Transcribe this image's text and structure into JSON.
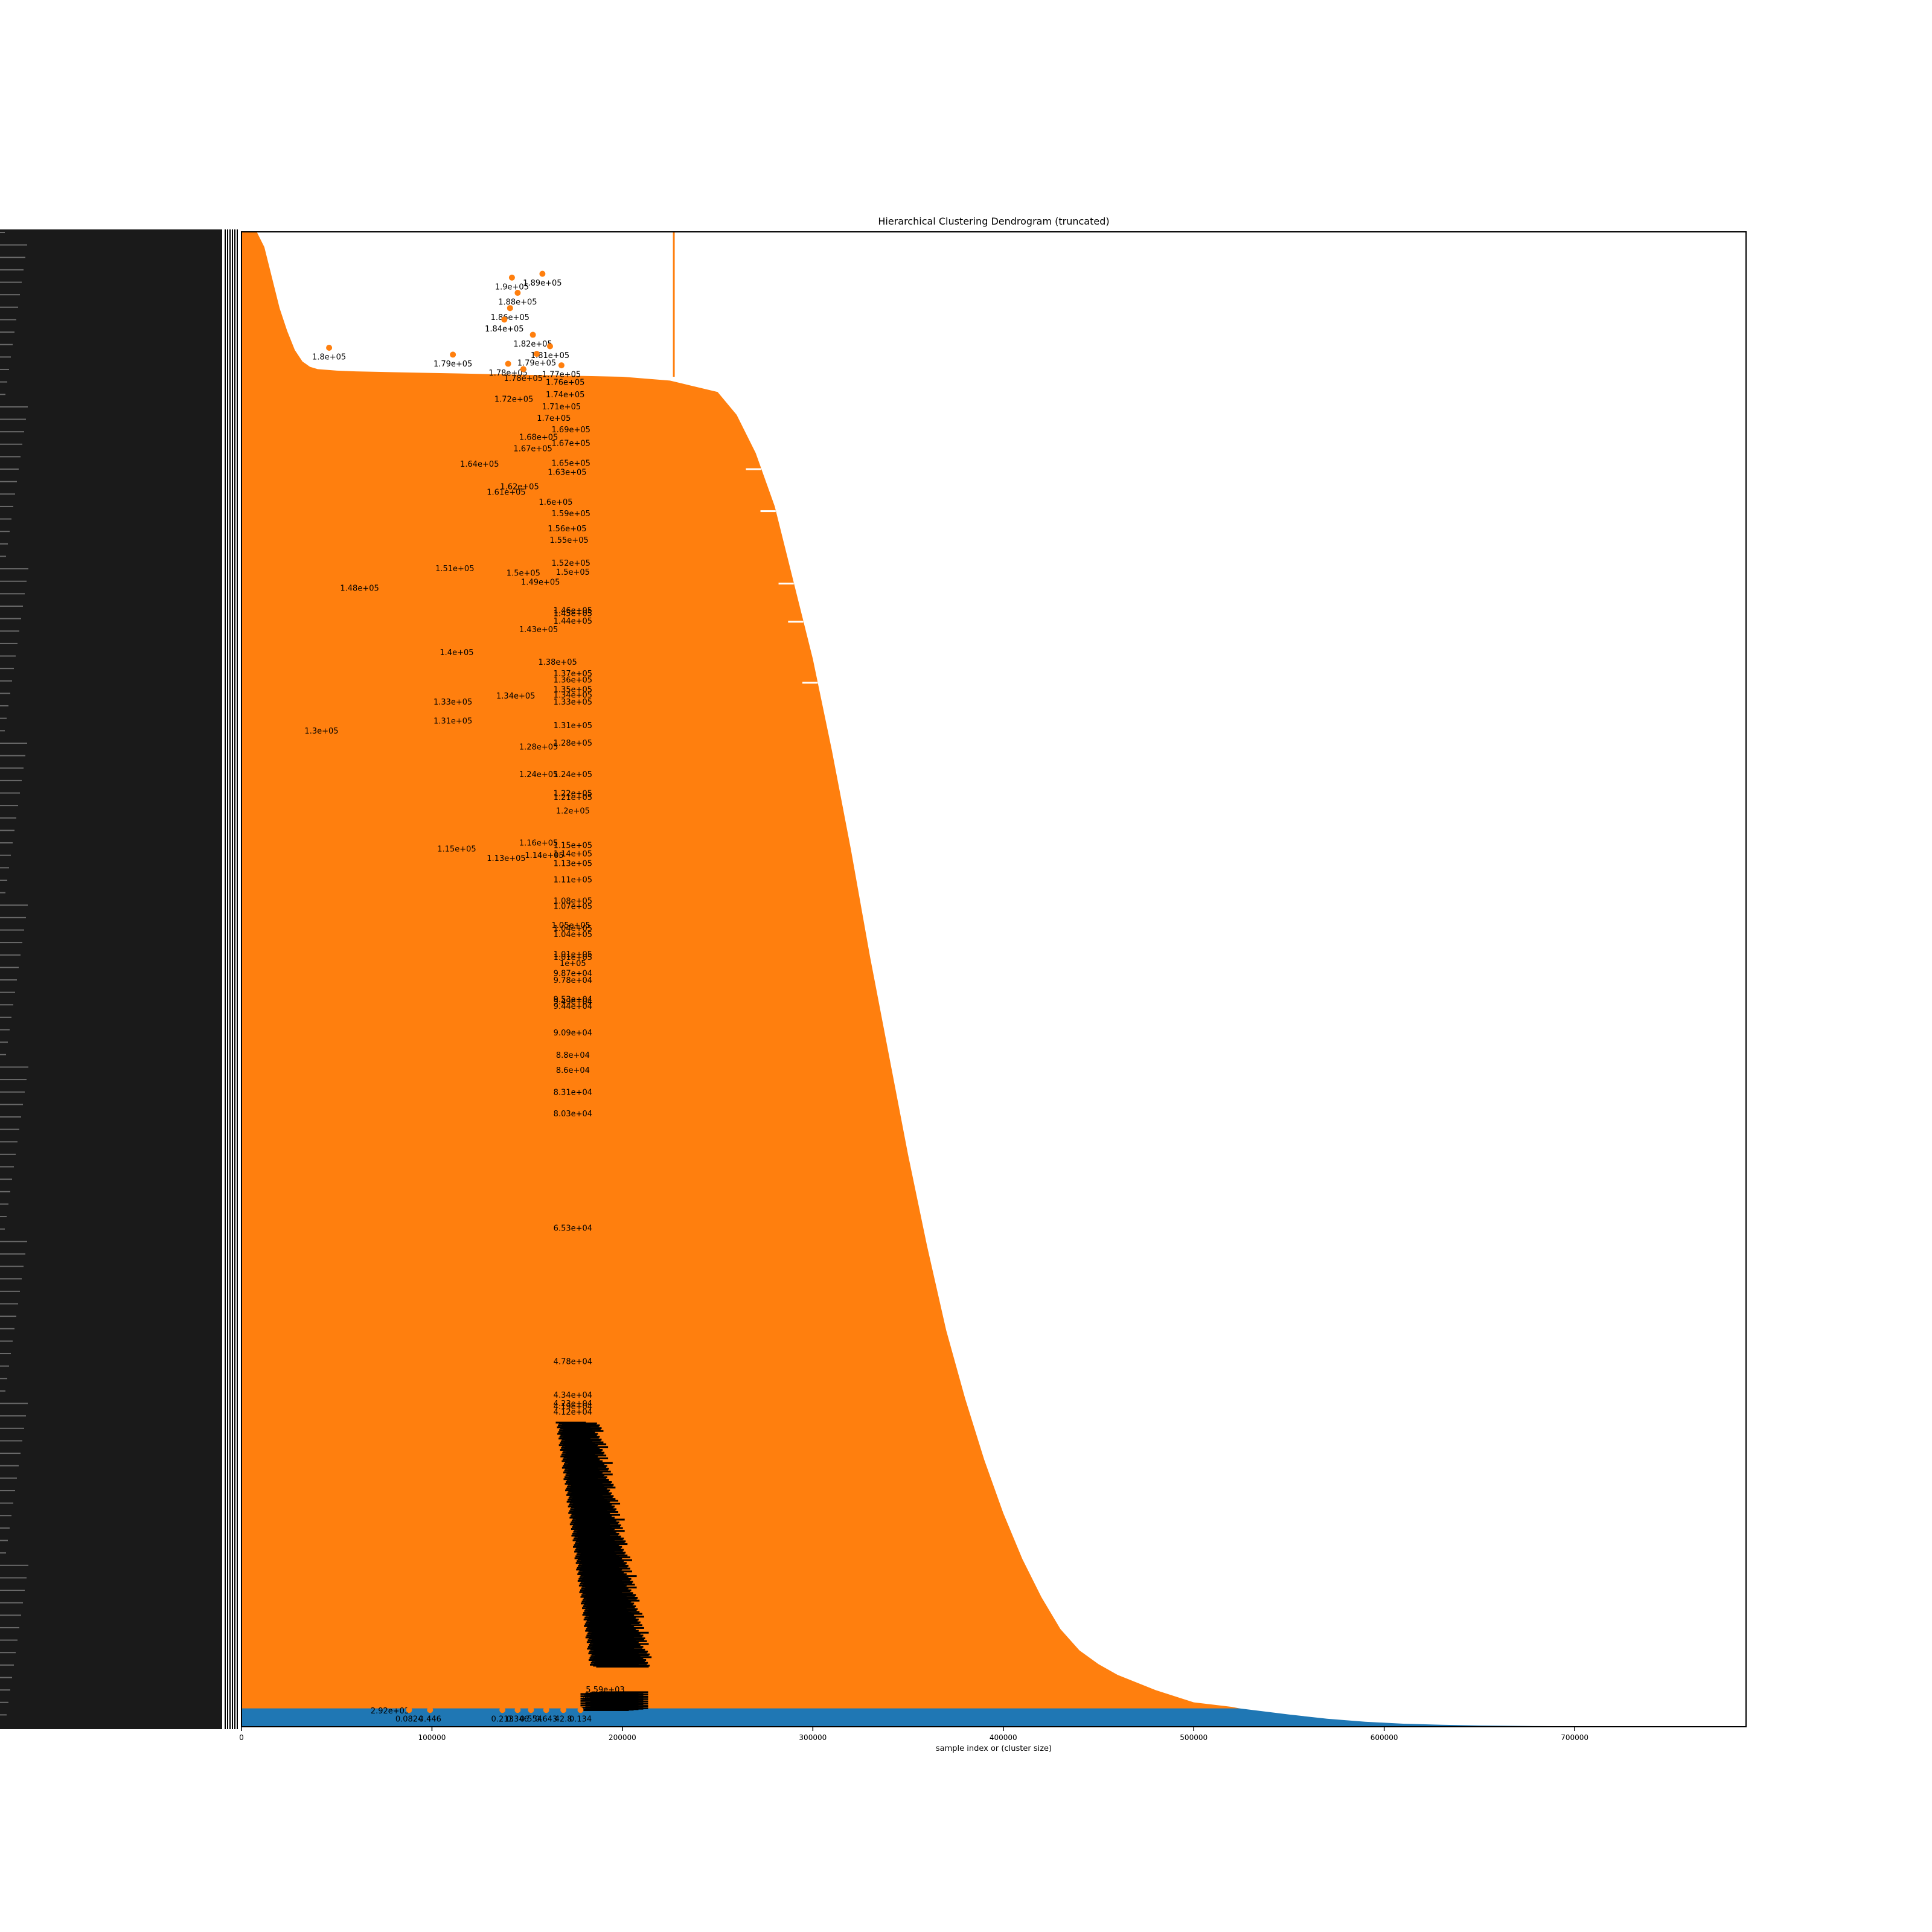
{
  "chart_data": {
    "type": "dendrogram",
    "title": "Hierarchical Clustering Dendrogram (truncated)",
    "xlabel": "sample index or (cluster size)",
    "ylabel": "",
    "xlim": [
      0,
      790000
    ],
    "ylim": [
      0,
      196000
    ],
    "grid": false,
    "legend": "none",
    "colors": {
      "upper_clusters": "#ff7f0e",
      "base_cluster": "#1f77b4",
      "labels": "#000000"
    },
    "x_ticks": [
      0,
      100000,
      200000,
      300000,
      400000,
      500000,
      600000,
      700000
    ],
    "x_tick_labels": [
      "0",
      "100000",
      "200000",
      "300000",
      "400000",
      "500000",
      "600000",
      "700000"
    ],
    "orange_region_profile": {
      "x": [
        0,
        100000,
        200000,
        225000,
        250000,
        260000,
        270000,
        280000,
        290000,
        300000,
        310000,
        320000,
        330000,
        340000,
        350000,
        360000,
        370000,
        380000,
        390000,
        400000,
        410000,
        420000,
        430000,
        440000,
        450000,
        460000,
        480000,
        500000,
        520000,
        524000
      ],
      "y": [
        178000,
        177500,
        177000,
        176500,
        175000,
        172000,
        167000,
        160000,
        150000,
        140000,
        128000,
        115000,
        101000,
        88000,
        75000,
        63000,
        52000,
        43000,
        35000,
        28000,
        22000,
        17000,
        12800,
        10000,
        8200,
        6800,
        4800,
        3200,
        2600,
        2400
      ]
    },
    "orange_top_edge_x_at_max": 8000,
    "orange_left_hump": {
      "x": [
        8000,
        12000,
        16000,
        20000,
        24000,
        28000,
        32000,
        36000,
        40000,
        50000,
        60000,
        80000,
        100000
      ],
      "y": [
        196000,
        194000,
        190000,
        186000,
        183000,
        180500,
        179000,
        178300,
        178000,
        177800,
        177700,
        177600,
        177500
      ]
    },
    "orange_spike": {
      "x": 227000,
      "y_top": 196000,
      "y_bottom": 177000
    },
    "blue_region_profile": {
      "x": [
        0,
        524000,
        550000,
        570000,
        590000,
        610000,
        630000,
        650000,
        680000,
        720000,
        755000
      ],
      "y": [
        2400,
        2400,
        1600,
        1050,
        650,
        400,
        260,
        160,
        90,
        40,
        10
      ]
    },
    "merge_points": [
      {
        "x": 142000,
        "y": 190000,
        "label": "1.9e+05"
      },
      {
        "x": 145000,
        "y": 188000,
        "label": "1.88e+05"
      },
      {
        "x": 158000,
        "y": 190500,
        "label": "1.89e+05"
      },
      {
        "x": 141000,
        "y": 186000,
        "label": "1.86e+05"
      },
      {
        "x": 138000,
        "y": 184500,
        "label": "1.84e+05"
      },
      {
        "x": 153000,
        "y": 182500,
        "label": "1.82e+05"
      },
      {
        "x": 46000,
        "y": 180800,
        "label": "1.8e+05"
      },
      {
        "x": 162000,
        "y": 181000,
        "label": "1.81e+05"
      },
      {
        "x": 111000,
        "y": 179900,
        "label": "1.79e+05"
      },
      {
        "x": 155000,
        "y": 180000,
        "label": "1.79e+05"
      },
      {
        "x": 140000,
        "y": 178700,
        "label": "1.78e+05"
      },
      {
        "x": 148000,
        "y": 178000,
        "label": "1.78e+05"
      },
      {
        "x": 168000,
        "y": 178500,
        "label": "1.77e+05"
      },
      {
        "x": 88000,
        "y": 2200,
        "label": "0.0824"
      },
      {
        "x": 99000,
        "y": 2200,
        "label": "0.446"
      },
      {
        "x": 137000,
        "y": 2200,
        "label": "0.213"
      },
      {
        "x": 145000,
        "y": 2200,
        "label": "0.346"
      },
      {
        "x": 152000,
        "y": 2200,
        "label": "0.554"
      },
      {
        "x": 160000,
        "y": 2200,
        "label": "0.643"
      },
      {
        "x": 169000,
        "y": 2200,
        "label": "42.8"
      },
      {
        "x": 178000,
        "y": 2200,
        "label": "0.134"
      }
    ],
    "distance_labels": [
      {
        "x": 143000,
        "y": 174000,
        "label": "1.72e+05"
      },
      {
        "x": 170000,
        "y": 174600,
        "label": "1.74e+05"
      },
      {
        "x": 170000,
        "y": 176200,
        "label": "1.76e+05"
      },
      {
        "x": 168000,
        "y": 173000,
        "label": "1.71e+05"
      },
      {
        "x": 164000,
        "y": 171500,
        "label": "1.7e+05"
      },
      {
        "x": 173000,
        "y": 170000,
        "label": "1.69e+05"
      },
      {
        "x": 156000,
        "y": 169000,
        "label": "1.68e+05"
      },
      {
        "x": 173000,
        "y": 168200,
        "label": "1.67e+05"
      },
      {
        "x": 153000,
        "y": 167500,
        "label": "1.67e+05"
      },
      {
        "x": 125000,
        "y": 165500,
        "label": "1.64e+05"
      },
      {
        "x": 173000,
        "y": 165600,
        "label": "1.65e+05"
      },
      {
        "x": 171000,
        "y": 164400,
        "label": "1.63e+05"
      },
      {
        "x": 146000,
        "y": 162500,
        "label": "1.62e+05"
      },
      {
        "x": 139000,
        "y": 161800,
        "label": "1.61e+05"
      },
      {
        "x": 165000,
        "y": 160500,
        "label": "1.6e+05"
      },
      {
        "x": 173000,
        "y": 159000,
        "label": "1.59e+05"
      },
      {
        "x": 171000,
        "y": 157000,
        "label": "1.56e+05"
      },
      {
        "x": 172000,
        "y": 155500,
        "label": "1.55e+05"
      },
      {
        "x": 173000,
        "y": 152500,
        "label": "1.52e+05"
      },
      {
        "x": 112000,
        "y": 151800,
        "label": "1.51e+05"
      },
      {
        "x": 148000,
        "y": 151200,
        "label": "1.5e+05"
      },
      {
        "x": 174000,
        "y": 151300,
        "label": "1.5e+05"
      },
      {
        "x": 157000,
        "y": 150000,
        "label": "1.49e+05"
      },
      {
        "x": 62000,
        "y": 149200,
        "label": "1.48e+05"
      },
      {
        "x": 174000,
        "y": 146300,
        "label": "1.46e+05"
      },
      {
        "x": 174000,
        "y": 145900,
        "label": "1.45e+05"
      },
      {
        "x": 174000,
        "y": 144900,
        "label": "1.44e+05"
      },
      {
        "x": 156000,
        "y": 143800,
        "label": "1.43e+05"
      },
      {
        "x": 113000,
        "y": 140800,
        "label": "1.4e+05"
      },
      {
        "x": 166000,
        "y": 139500,
        "label": "1.38e+05"
      },
      {
        "x": 174000,
        "y": 138000,
        "label": "1.37e+05"
      },
      {
        "x": 174000,
        "y": 137200,
        "label": "1.36e+05"
      },
      {
        "x": 174000,
        "y": 135900,
        "label": "1.35e+05"
      },
      {
        "x": 144000,
        "y": 135100,
        "label": "1.34e+05"
      },
      {
        "x": 174000,
        "y": 135200,
        "label": "1.34e+05"
      },
      {
        "x": 111000,
        "y": 134300,
        "label": "1.33e+05"
      },
      {
        "x": 174000,
        "y": 134300,
        "label": "1.33e+05"
      },
      {
        "x": 111000,
        "y": 131800,
        "label": "1.31e+05"
      },
      {
        "x": 174000,
        "y": 131200,
        "label": "1.31e+05"
      },
      {
        "x": 42000,
        "y": 130500,
        "label": "1.3e+05"
      },
      {
        "x": 174000,
        "y": 128900,
        "label": "1.28e+05"
      },
      {
        "x": 156000,
        "y": 128400,
        "label": "1.28e+05"
      },
      {
        "x": 156000,
        "y": 124800,
        "label": "1.24e+05"
      },
      {
        "x": 174000,
        "y": 124800,
        "label": "1.24e+05"
      },
      {
        "x": 174000,
        "y": 122300,
        "label": "1.22e+05"
      },
      {
        "x": 174000,
        "y": 121800,
        "label": "1.21e+05"
      },
      {
        "x": 174000,
        "y": 120000,
        "label": "1.2e+05"
      },
      {
        "x": 156000,
        "y": 115800,
        "label": "1.16e+05"
      },
      {
        "x": 174000,
        "y": 115500,
        "label": "1.15e+05"
      },
      {
        "x": 113000,
        "y": 115000,
        "label": "1.15e+05"
      },
      {
        "x": 159000,
        "y": 114200,
        "label": "1.14e+05"
      },
      {
        "x": 174000,
        "y": 114400,
        "label": "1.14e+05"
      },
      {
        "x": 139000,
        "y": 113800,
        "label": "1.13e+05"
      },
      {
        "x": 174000,
        "y": 113100,
        "label": "1.13e+05"
      },
      {
        "x": 174000,
        "y": 111000,
        "label": "1.11e+05"
      },
      {
        "x": 174000,
        "y": 108200,
        "label": "1.08e+05"
      },
      {
        "x": 174000,
        "y": 107500,
        "label": "1.07e+05"
      },
      {
        "x": 173000,
        "y": 105000,
        "label": "1.05e+05"
      },
      {
        "x": 174000,
        "y": 104600,
        "label": "1.04e+05"
      },
      {
        "x": 174000,
        "y": 103800,
        "label": "1.04e+05"
      },
      {
        "x": 174000,
        "y": 101200,
        "label": "1.01e+05"
      },
      {
        "x": 174000,
        "y": 100800,
        "label": "1.01e+05"
      },
      {
        "x": 174000,
        "y": 100000,
        "label": "1e+05"
      },
      {
        "x": 174000,
        "y": 98700,
        "label": "9.87e+04"
      },
      {
        "x": 174000,
        "y": 97800,
        "label": "9.78e+04"
      },
      {
        "x": 174000,
        "y": 95300,
        "label": "9.53e+04"
      },
      {
        "x": 174000,
        "y": 95000,
        "label": "9.49e+04"
      },
      {
        "x": 174000,
        "y": 94400,
        "label": "9.44e+04"
      },
      {
        "x": 174000,
        "y": 90900,
        "label": "9.09e+04"
      },
      {
        "x": 174000,
        "y": 88000,
        "label": "8.8e+04"
      },
      {
        "x": 174000,
        "y": 86000,
        "label": "8.6e+04"
      },
      {
        "x": 174000,
        "y": 83100,
        "label": "8.31e+04"
      },
      {
        "x": 174000,
        "y": 80300,
        "label": "8.03e+04"
      },
      {
        "x": 174000,
        "y": 65300,
        "label": "6.53e+04"
      },
      {
        "x": 174000,
        "y": 47800,
        "label": "4.78e+04"
      },
      {
        "x": 174000,
        "y": 43400,
        "label": "4.34e+04"
      },
      {
        "x": 174000,
        "y": 42300,
        "label": "4.23e+04"
      },
      {
        "x": 174000,
        "y": 41900,
        "label": "4.19e+04"
      },
      {
        "x": 174000,
        "y": 41200,
        "label": "4.12e+04"
      },
      {
        "x": 78000,
        "y": 2000,
        "label": "2.92e+03"
      },
      {
        "x": 191000,
        "y": 4800,
        "label": "5.59e+03"
      },
      {
        "x": 190000,
        "y": 4100,
        "label": "4.84e+03"
      },
      {
        "x": 189000,
        "y": 3600,
        "label": "4.02e+03"
      }
    ],
    "dense_label_column": {
      "description_text": "",
      "x_range": [
        165000,
        200000
      ],
      "y_range": [
        8000,
        40000
      ]
    }
  }
}
